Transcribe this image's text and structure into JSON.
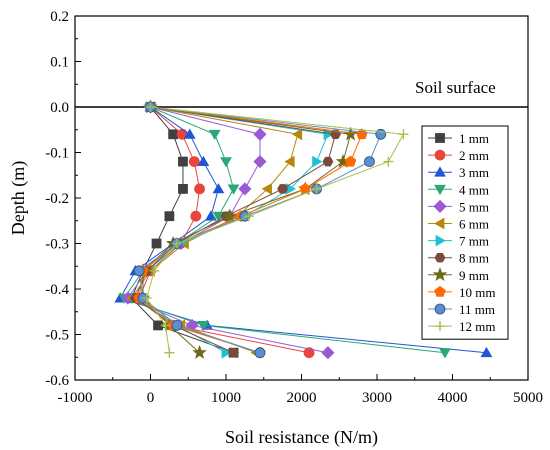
{
  "chart_data": {
    "type": "line",
    "xlabel": "Soil resistance (N/m)",
    "ylabel": "Depth (m)",
    "xlim": [
      -1000,
      5000
    ],
    "ylim": [
      -0.6,
      0.2
    ],
    "xticks": [
      -1000,
      0,
      1000,
      2000,
      3000,
      4000,
      5000
    ],
    "yticks": [
      0.2,
      0.1,
      0.0,
      -0.1,
      -0.2,
      -0.3,
      -0.4,
      -0.5,
      -0.6
    ],
    "xtick_labels": [
      "-1000",
      "0",
      "1000",
      "2000",
      "3000",
      "4000",
      "5000"
    ],
    "ytick_labels": [
      "0.2",
      "0.1",
      "0.0",
      "-0.1",
      "-0.2",
      "-0.3",
      "-0.4",
      "-0.5",
      "-0.6"
    ],
    "grid": false,
    "legend_position": "right",
    "reference_line": {
      "y": 0.0,
      "label": "Soil surface"
    },
    "depths": [
      0.0,
      -0.06,
      -0.12,
      -0.18,
      -0.24,
      -0.3,
      -0.36,
      -0.42,
      -0.48,
      -0.54
    ],
    "series": [
      {
        "name": "1 mm",
        "color": "#404040",
        "marker": "square",
        "x": [
          0,
          300,
          430,
          430,
          250,
          80,
          -100,
          -250,
          100,
          1100
        ]
      },
      {
        "name": "2 mm",
        "color": "#e8453c",
        "marker": "circle",
        "x": [
          0,
          420,
          580,
          650,
          600,
          400,
          0,
          -150,
          300,
          2100
        ]
      },
      {
        "name": "3 mm",
        "color": "#1f55d6",
        "marker": "triangle-up",
        "x": [
          0,
          520,
          700,
          900,
          800,
          300,
          -200,
          -400,
          750,
          4450
        ]
      },
      {
        "name": "4 mm",
        "color": "#2aa876",
        "marker": "triangle-down",
        "x": [
          0,
          850,
          1000,
          1100,
          900,
          350,
          -100,
          -350,
          700,
          3900
        ]
      },
      {
        "name": "5 mm",
        "color": "#9b59d6",
        "marker": "diamond",
        "x": [
          0,
          1450,
          1450,
          1250,
          1050,
          400,
          -50,
          -300,
          550,
          2350
        ]
      },
      {
        "name": "6 mm",
        "color": "#b8860b",
        "marker": "triangle-left",
        "x": [
          0,
          1950,
          1850,
          1550,
          1150,
          450,
          0,
          -250,
          400,
          1400
        ]
      },
      {
        "name": "7 mm",
        "color": "#1fc1d6",
        "marker": "triangle-right",
        "x": [
          0,
          2350,
          2200,
          1850,
          1250,
          400,
          -50,
          -200,
          350,
          1000
        ]
      },
      {
        "name": "8 mm",
        "color": "#7a4a3a",
        "marker": "hexagon",
        "x": [
          0,
          2450,
          2350,
          1750,
          1000,
          350,
          -50,
          -200,
          300,
          1100
        ]
      },
      {
        "name": "9 mm",
        "color": "#6b6b1a",
        "marker": "star",
        "x": [
          0,
          2650,
          2550,
          2050,
          1050,
          300,
          -100,
          -100,
          250,
          650
        ]
      },
      {
        "name": "10 mm",
        "color": "#ff6a00",
        "marker": "pentagon",
        "x": [
          0,
          2800,
          2650,
          2050,
          1200,
          350,
          -100,
          -150,
          300,
          1450
        ]
      },
      {
        "name": "11 mm",
        "color": "#5a8fd0",
        "marker": "sphere",
        "x": [
          0,
          3050,
          2900,
          2200,
          1250,
          350,
          -150,
          -100,
          350,
          1450
        ]
      },
      {
        "name": "12 mm",
        "color": "#a6c04a",
        "marker": "plus",
        "x": [
          0,
          3350,
          3150,
          2200,
          1300,
          350,
          50,
          -50,
          200,
          250
        ]
      }
    ]
  }
}
